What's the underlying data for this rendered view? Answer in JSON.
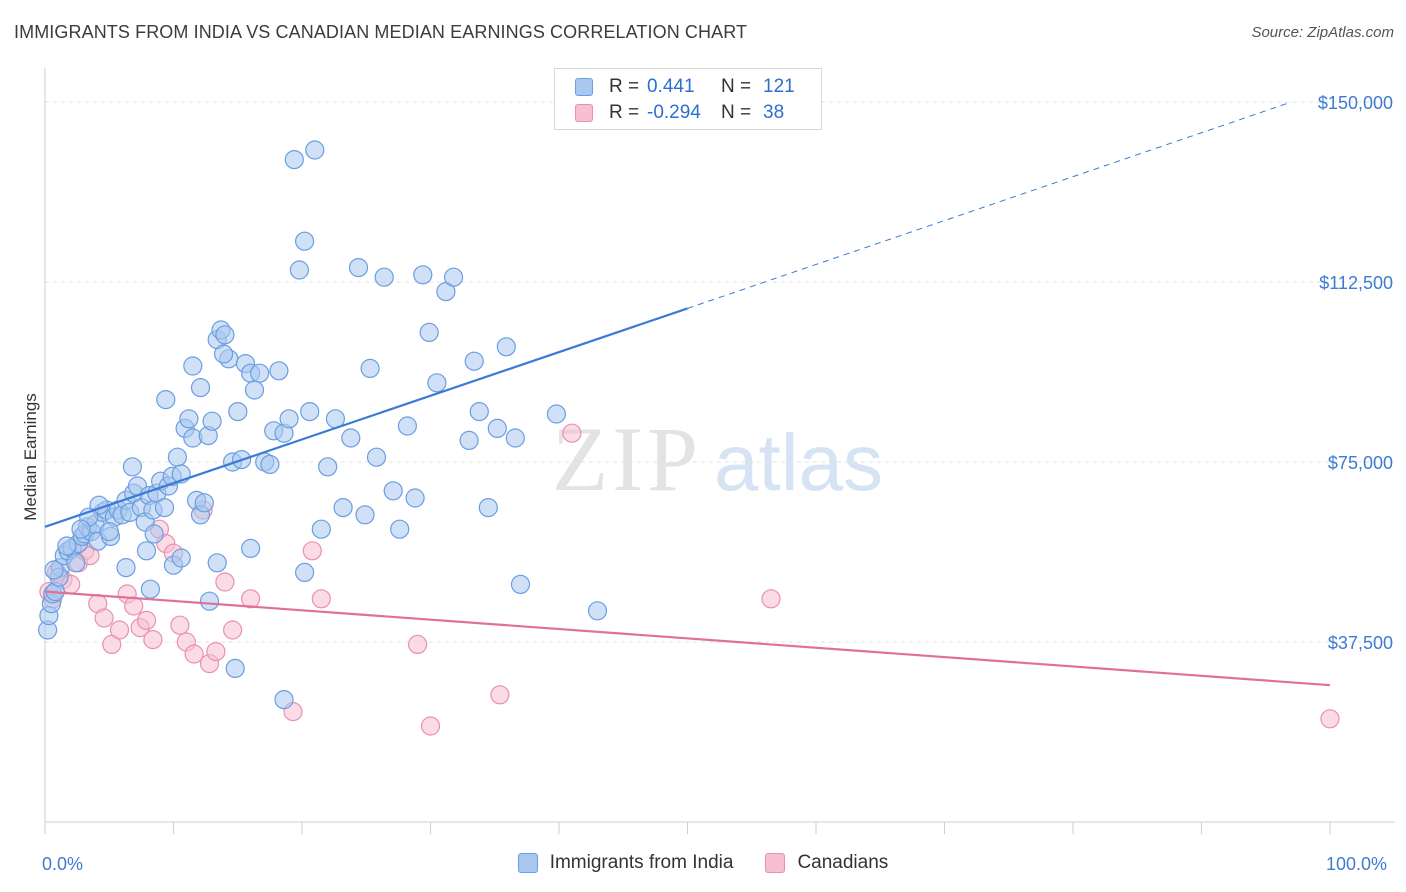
{
  "title": "IMMIGRANTS FROM INDIA VS CANADIAN MEDIAN EARNINGS CORRELATION CHART",
  "source": "Source: ZipAtlas.com",
  "watermark": {
    "zip": "ZIP",
    "atlas": "atlas"
  },
  "legend": {
    "rows": [
      {
        "r_label": "R =",
        "r_value": "0.441",
        "n_label": "N =",
        "n_value": "121",
        "color": "#a9c8f0",
        "border": "#6a9ee0"
      },
      {
        "r_label": "R =",
        "r_value": "-0.294",
        "n_label": "N =",
        "n_value": "38",
        "color": "#f7c0d2",
        "border": "#e890b0"
      }
    ]
  },
  "bottom_legend": [
    {
      "label": "Immigrants from India",
      "color": "#a9c8f0",
      "border": "#6a9ee0"
    },
    {
      "label": "Canadians",
      "color": "#f7c0d2",
      "border": "#e890b0"
    }
  ],
  "chart_data": {
    "type": "scatter",
    "ylabel": "Median Earnings",
    "x_tick_labels": [
      "0.0%",
      "100.0%"
    ],
    "y_tick_labels": [
      "$150,000",
      "$112,500",
      "$75,000",
      "$37,500"
    ],
    "y_ticks": [
      150000,
      112500,
      75000,
      37500
    ],
    "xlim": [
      0,
      100
    ],
    "ylim": [
      0,
      155000
    ],
    "grid": true,
    "colors": {
      "blue": "#3a7bd5",
      "pink": "#e0709a"
    },
    "series": [
      {
        "name": "Immigrants from India",
        "color": "#a9c8f0",
        "stroke": "#6a9ee0",
        "trend": {
          "x0": 0,
          "y0": 61500,
          "x1": 50,
          "y1": 107000,
          "x_dash_end": 97,
          "y_dash_end": 150000
        },
        "points": [
          [
            0.2,
            40000
          ],
          [
            0.3,
            43000
          ],
          [
            0.5,
            45500
          ],
          [
            0.6,
            47500
          ],
          [
            0.8,
            48000
          ],
          [
            1.2,
            53000
          ],
          [
            1.5,
            55500
          ],
          [
            1.8,
            56500
          ],
          [
            2.1,
            57000
          ],
          [
            2.4,
            54000
          ],
          [
            2.6,
            58000
          ],
          [
            2.9,
            59500
          ],
          [
            3.1,
            60000
          ],
          [
            3.3,
            61500
          ],
          [
            3.6,
            60500
          ],
          [
            3.9,
            62000
          ],
          [
            4.1,
            58500
          ],
          [
            4.5,
            64500
          ],
          [
            4.8,
            65000
          ],
          [
            5.1,
            59500
          ],
          [
            5.4,
            63500
          ],
          [
            5.7,
            65000
          ],
          [
            6.0,
            64000
          ],
          [
            6.3,
            67000
          ],
          [
            6.6,
            64500
          ],
          [
            6.9,
            68500
          ],
          [
            7.2,
            70000
          ],
          [
            7.5,
            65500
          ],
          [
            7.8,
            62500
          ],
          [
            8.1,
            68000
          ],
          [
            8.4,
            65000
          ],
          [
            8.7,
            68500
          ],
          [
            9.0,
            71000
          ],
          [
            9.3,
            65500
          ],
          [
            9.6,
            70000
          ],
          [
            9.9,
            72000
          ],
          [
            10.3,
            76000
          ],
          [
            10.6,
            72500
          ],
          [
            10.9,
            82000
          ],
          [
            11.2,
            84000
          ],
          [
            11.5,
            80000
          ],
          [
            11.8,
            67000
          ],
          [
            12.1,
            64000
          ],
          [
            12.4,
            66500
          ],
          [
            12.7,
            80500
          ],
          [
            13.0,
            83500
          ],
          [
            13.4,
            100500
          ],
          [
            13.7,
            102500
          ],
          [
            14.0,
            101500
          ],
          [
            14.3,
            96500
          ],
          [
            14.6,
            75000
          ],
          [
            15.0,
            85500
          ],
          [
            15.3,
            75500
          ],
          [
            15.6,
            95500
          ],
          [
            16.0,
            93500
          ],
          [
            16.3,
            90000
          ],
          [
            16.7,
            93500
          ],
          [
            17.1,
            75000
          ],
          [
            17.5,
            74500
          ],
          [
            17.8,
            81500
          ],
          [
            18.2,
            94000
          ],
          [
            18.6,
            81000
          ],
          [
            19.0,
            84000
          ],
          [
            19.4,
            138000
          ],
          [
            19.8,
            115000
          ],
          [
            20.2,
            121000
          ],
          [
            20.6,
            85500
          ],
          [
            21.0,
            140000
          ],
          [
            21.5,
            61000
          ],
          [
            22.0,
            74000
          ],
          [
            22.6,
            84000
          ],
          [
            23.2,
            65500
          ],
          [
            23.8,
            80000
          ],
          [
            24.4,
            115500
          ],
          [
            24.9,
            64000
          ],
          [
            25.3,
            94500
          ],
          [
            25.8,
            76000
          ],
          [
            26.4,
            113500
          ],
          [
            27.1,
            69000
          ],
          [
            27.6,
            61000
          ],
          [
            28.2,
            82500
          ],
          [
            28.8,
            67500
          ],
          [
            29.4,
            114000
          ],
          [
            29.9,
            102000
          ],
          [
            30.5,
            91500
          ],
          [
            31.2,
            110500
          ],
          [
            31.8,
            113500
          ],
          [
            33.0,
            79500
          ],
          [
            33.4,
            96000
          ],
          [
            33.8,
            85500
          ],
          [
            34.5,
            65500
          ],
          [
            35.2,
            82000
          ],
          [
            35.9,
            99000
          ],
          [
            36.6,
            80000
          ],
          [
            37.0,
            49500
          ],
          [
            39.8,
            85000
          ],
          [
            43.0,
            44000
          ],
          [
            7.9,
            56500
          ],
          [
            6.3,
            53000
          ],
          [
            8.5,
            60000
          ],
          [
            10.0,
            53500
          ],
          [
            10.6,
            55000
          ],
          [
            12.8,
            46000
          ],
          [
            13.4,
            54000
          ],
          [
            14.8,
            32000
          ],
          [
            16.0,
            57000
          ],
          [
            18.6,
            25500
          ],
          [
            20.2,
            52000
          ],
          [
            8.2,
            48500
          ],
          [
            11.5,
            95000
          ],
          [
            9.4,
            88000
          ],
          [
            5.0,
            60500
          ],
          [
            4.2,
            66000
          ],
          [
            3.4,
            63500
          ],
          [
            2.8,
            61000
          ],
          [
            1.7,
            57500
          ],
          [
            1.1,
            51000
          ],
          [
            0.7,
            52500
          ],
          [
            6.8,
            74000
          ],
          [
            13.9,
            97500
          ],
          [
            12.1,
            90500
          ]
        ]
      },
      {
        "name": "Canadians",
        "color": "#f7c0d2",
        "stroke": "#e890b0",
        "trend": {
          "x0": 0,
          "y0": 48000,
          "x1": 100,
          "y1": 28500
        },
        "points": [
          [
            0.3,
            48000
          ],
          [
            0.6,
            46500
          ],
          [
            0.9,
            52000
          ],
          [
            1.4,
            50500
          ],
          [
            2.0,
            49500
          ],
          [
            2.6,
            54000
          ],
          [
            3.1,
            56500
          ],
          [
            3.5,
            55500
          ],
          [
            4.1,
            45500
          ],
          [
            4.6,
            42500
          ],
          [
            5.2,
            37000
          ],
          [
            5.8,
            40000
          ],
          [
            6.4,
            47500
          ],
          [
            6.9,
            45000
          ],
          [
            7.4,
            40500
          ],
          [
            7.9,
            42000
          ],
          [
            8.4,
            38000
          ],
          [
            8.9,
            61000
          ],
          [
            9.4,
            58000
          ],
          [
            10.0,
            56000
          ],
          [
            10.5,
            41000
          ],
          [
            11.0,
            37500
          ],
          [
            11.6,
            35000
          ],
          [
            12.3,
            65000
          ],
          [
            12.8,
            33000
          ],
          [
            13.3,
            35500
          ],
          [
            14.0,
            50000
          ],
          [
            14.6,
            40000
          ],
          [
            16.0,
            46500
          ],
          [
            19.3,
            23000
          ],
          [
            20.8,
            56500
          ],
          [
            21.5,
            46500
          ],
          [
            29.0,
            37000
          ],
          [
            30.0,
            20000
          ],
          [
            35.4,
            26500
          ],
          [
            41.0,
            81000
          ],
          [
            56.5,
            46500
          ],
          [
            100.0,
            21500
          ]
        ]
      }
    ]
  }
}
